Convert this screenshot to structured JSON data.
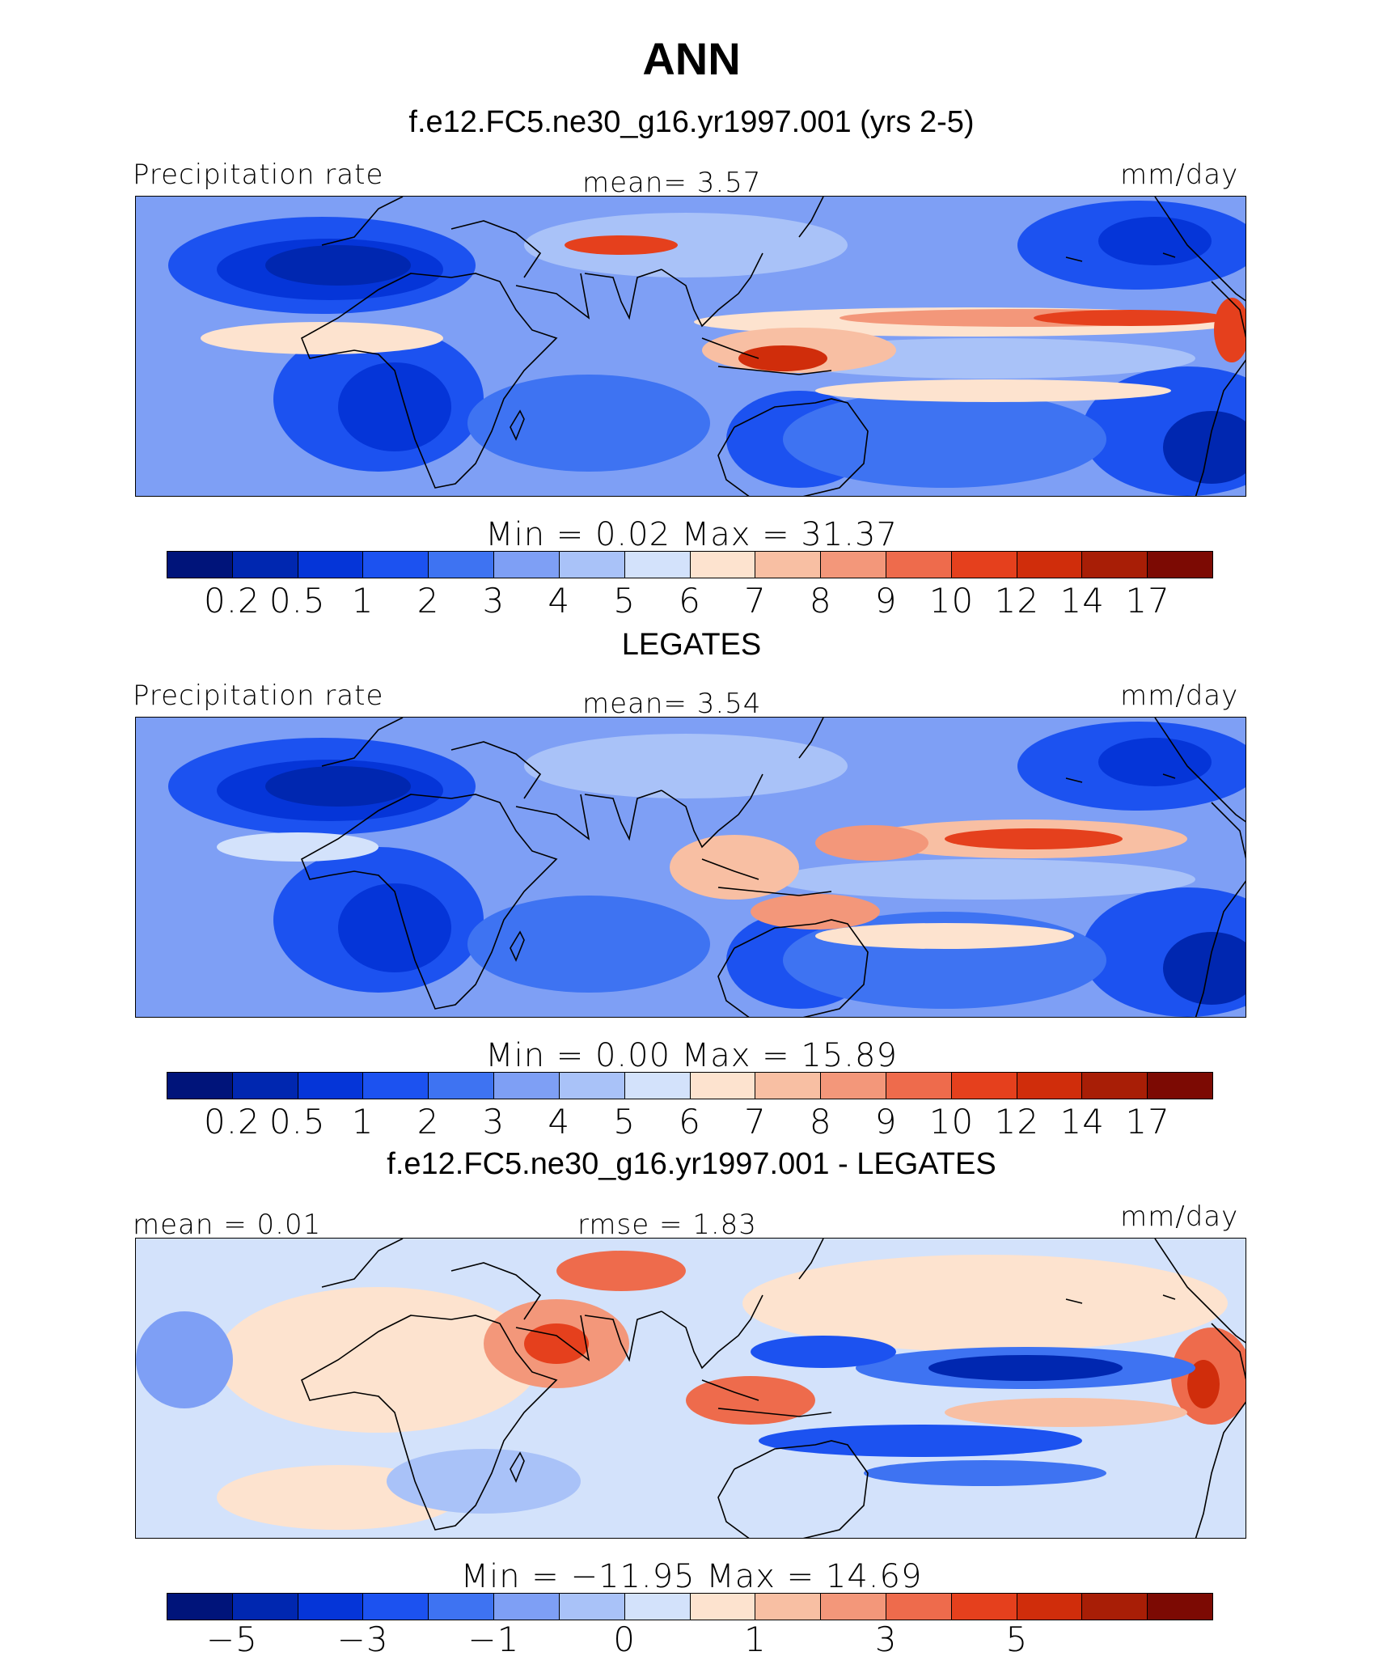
{
  "title": "ANN",
  "panels": [
    {
      "id": "model",
      "header": "f.e12.FC5.ne30_g16.yr1997.001 (yrs 2-5)",
      "left_label": "Precipitation  rate",
      "center_label": "mean=    3.57",
      "right_label": "mm/day",
      "minmax": "Min  =     0.02  Max  =    31.37",
      "colorbar": {
        "colors": [
          "#00147a",
          "#0027b0",
          "#0535d8",
          "#1c52f0",
          "#3e73f2",
          "#7e9ff5",
          "#a9c2f8",
          "#d3e2fb",
          "#fde3cf",
          "#f8bfa3",
          "#f3977a",
          "#ee6b4c",
          "#e5401d",
          "#d02d0b",
          "#a81e06",
          "#7c0a03"
        ],
        "ticks": [
          "0.2",
          "0.5",
          "1",
          "2",
          "3",
          "4",
          "5",
          "6",
          "7",
          "8",
          "9",
          "10",
          "12",
          "14",
          "17"
        ]
      }
    },
    {
      "id": "obs",
      "header": "LEGATES",
      "left_label": "Precipitation  rate",
      "center_label": "mean=    3.54",
      "right_label": "mm/day",
      "minmax": "Min  =     0.00  Max  =    15.89",
      "colorbar": {
        "colors": [
          "#00147a",
          "#0027b0",
          "#0535d8",
          "#1c52f0",
          "#3e73f2",
          "#7e9ff5",
          "#a9c2f8",
          "#d3e2fb",
          "#fde3cf",
          "#f8bfa3",
          "#f3977a",
          "#ee6b4c",
          "#e5401d",
          "#d02d0b",
          "#a81e06",
          "#7c0a03"
        ],
        "ticks": [
          "0.2",
          "0.5",
          "1",
          "2",
          "3",
          "4",
          "5",
          "6",
          "7",
          "8",
          "9",
          "10",
          "12",
          "14",
          "17"
        ]
      }
    },
    {
      "id": "diff",
      "header": "f.e12.FC5.ne30_g16.yr1997.001 - LEGATES",
      "left_label": "mean  =    0.01",
      "center_label": "rmse  =    1.83",
      "right_label": "mm/day",
      "minmax": "Min  =  −11.95  Max  =    14.69",
      "colorbar": {
        "colors": [
          "#00147a",
          "#0027b0",
          "#0535d8",
          "#1c52f0",
          "#3e73f2",
          "#7e9ff5",
          "#a9c2f8",
          "#d3e2fb",
          "#fde3cf",
          "#f8bfa3",
          "#f3977a",
          "#ee6b4c",
          "#e5401d",
          "#d02d0b",
          "#a81e06",
          "#7c0a03"
        ],
        "ticks": [
          "−5",
          "−3",
          "−1",
          "0",
          "1",
          "3",
          "5"
        ]
      }
    }
  ],
  "chart_data": {
    "type": "heatmap",
    "title": "ANN",
    "panels": [
      "f.e12.FC5.ne30_g16.yr1997.001 (yrs 2-5)",
      "LEGATES",
      "f.e12.FC5.ne30_g16.yr1997.001 - LEGATES"
    ],
    "variable": "Precipitation  rate",
    "units": "mm/day",
    "stats": [
      {
        "mean": 3.57,
        "min": 0.02,
        "max": 31.37
      },
      {
        "mean": 3.54,
        "min": 0.0,
        "max": 15.89
      },
      {
        "mean": 0.01,
        "rmse": 1.83,
        "min": -11.95,
        "max": 14.69
      }
    ],
    "precip_levels": [
      0.2,
      0.5,
      1,
      2,
      3,
      4,
      5,
      6,
      7,
      8,
      9,
      10,
      12,
      14,
      17
    ],
    "diff_levels_labeled": [
      -5,
      -3,
      -1,
      0,
      1,
      3,
      5
    ]
  }
}
